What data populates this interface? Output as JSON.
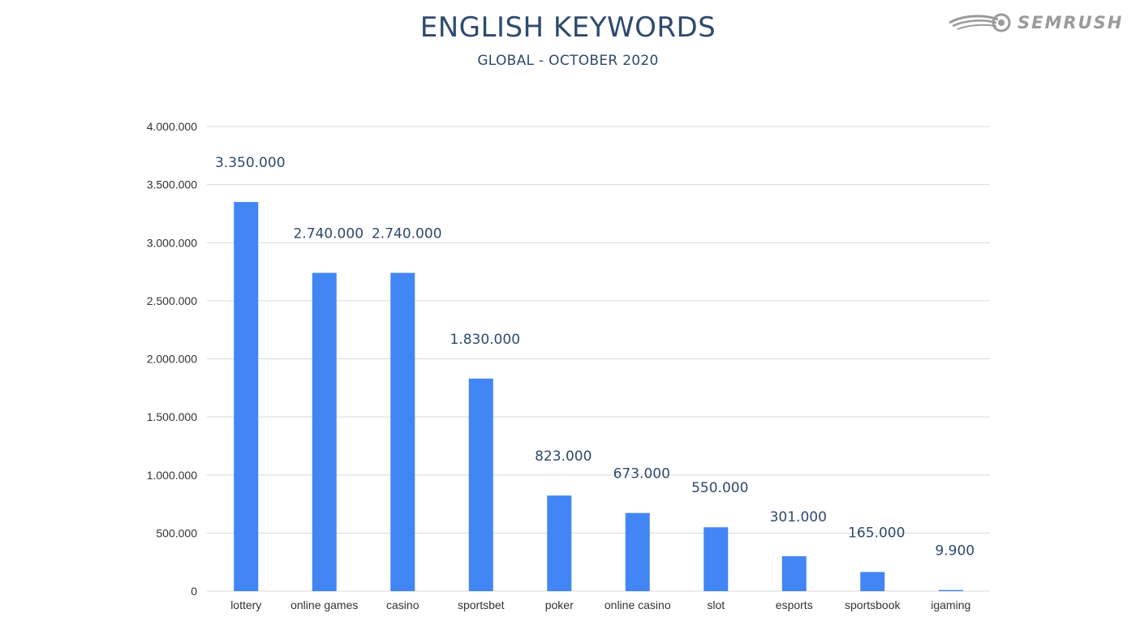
{
  "brand": {
    "logo_text": "SEMRUSH"
  },
  "colors": {
    "bar": "#4285f4",
    "title": "#2e4a6e",
    "grid": "#d9d9d9",
    "tick": "#333333",
    "data_label": "#2e4a6e",
    "logo": "#9a9a9a"
  },
  "chart_data": {
    "type": "bar",
    "title": "ENGLISH KEYWORDS",
    "subtitle": "GLOBAL - OCTOBER 2020",
    "categories": [
      "lottery",
      "online games",
      "casino",
      "sportsbet",
      "poker",
      "online casino",
      "slot",
      "esports",
      "sportsbook",
      "igaming"
    ],
    "values": [
      3350000,
      2740000,
      2740000,
      1830000,
      823000,
      673000,
      550000,
      301000,
      165000,
      9900
    ],
    "data_labels": [
      "3.350.000",
      "2.740.000",
      "2.740.000",
      "1.830.000",
      "823.000",
      "673.000",
      "550.000",
      "301.000",
      "165.000",
      "9.900"
    ],
    "y_ticks": [
      0,
      500000,
      1000000,
      1500000,
      2000000,
      2500000,
      3000000,
      3500000,
      4000000
    ],
    "y_tick_labels": [
      "0",
      "500.000",
      "1.000.000",
      "1.500.000",
      "2.000.000",
      "2.500.000",
      "3.000.000",
      "3.500.000",
      "4.000.000"
    ],
    "ylim": [
      0,
      4000000
    ],
    "grid": true,
    "legend": "none",
    "xlabel": "",
    "ylabel": ""
  }
}
